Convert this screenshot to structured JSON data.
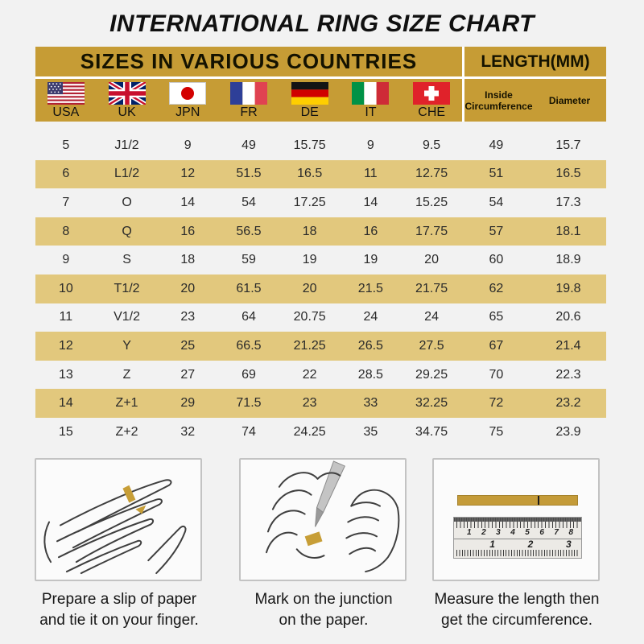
{
  "page": {
    "title": "INTERNATIONAL RING SIZE CHART"
  },
  "table": {
    "header_left": "SIZES IN VARIOUS COUNTRIES",
    "header_right": "LENGTH(MM)",
    "countries": [
      {
        "label": "USA",
        "flag": "usa-flag"
      },
      {
        "label": "UK",
        "flag": "uk-flag"
      },
      {
        "label": "JPN",
        "flag": "japan-flag"
      },
      {
        "label": "FR",
        "flag": "france-flag"
      },
      {
        "label": "DE",
        "flag": "germany-flag"
      },
      {
        "label": "IT",
        "flag": "italy-flag"
      },
      {
        "label": "CHE",
        "flag": "switzerland-flag"
      }
    ],
    "length_headers": [
      "Inside Circumference",
      "Diameter"
    ]
  },
  "chart_data": {
    "type": "table",
    "title": "INTERNATIONAL RING SIZE CHART",
    "group_headers": [
      "SIZES IN VARIOUS COUNTRIES",
      "LENGTH(MM)"
    ],
    "columns": [
      "USA",
      "UK",
      "JPN",
      "FR",
      "DE",
      "IT",
      "CHE",
      "Inside Circumference",
      "Diameter"
    ],
    "col_keys": [
      "usa",
      "uk",
      "jpn",
      "fr",
      "de",
      "it",
      "che",
      "inside-circumference",
      "diameter"
    ],
    "rows": [
      [
        "5",
        "J1/2",
        "9",
        "49",
        "15.75",
        "9",
        "9.5",
        "49",
        "15.7"
      ],
      [
        "6",
        "L1/2",
        "12",
        "51.5",
        "16.5",
        "11",
        "12.75",
        "51",
        "16.5"
      ],
      [
        "7",
        "O",
        "14",
        "54",
        "17.25",
        "14",
        "15.25",
        "54",
        "17.3"
      ],
      [
        "8",
        "Q",
        "16",
        "56.5",
        "18",
        "16",
        "17.75",
        "57",
        "18.1"
      ],
      [
        "9",
        "S",
        "18",
        "59",
        "19",
        "19",
        "20",
        "60",
        "18.9"
      ],
      [
        "10",
        "T1/2",
        "20",
        "61.5",
        "20",
        "21.5",
        "21.75",
        "62",
        "19.8"
      ],
      [
        "11",
        "V1/2",
        "23",
        "64",
        "20.75",
        "24",
        "24",
        "65",
        "20.6"
      ],
      [
        "12",
        "Y",
        "25",
        "66.5",
        "21.25",
        "26.5",
        "27.5",
        "67",
        "21.4"
      ],
      [
        "13",
        "Z",
        "27",
        "69",
        "22",
        "28.5",
        "29.25",
        "70",
        "22.3"
      ],
      [
        "14",
        "Z+1",
        "29",
        "71.5",
        "23",
        "33",
        "32.25",
        "72",
        "23.2"
      ],
      [
        "15",
        "Z+2",
        "32",
        "74",
        "24.25",
        "35",
        "34.75",
        "75",
        "23.9"
      ]
    ]
  },
  "steps": [
    {
      "caption_lines": [
        "Prepare a slip of paper",
        "and tie it on your finger."
      ]
    },
    {
      "caption_lines": [
        "Mark on the junction",
        "on the paper."
      ]
    },
    {
      "caption_lines": [
        "Measure the length then",
        "get the circumference."
      ],
      "ruler_cm": [
        "1",
        "2",
        "3",
        "4",
        "5",
        "6",
        "7",
        "8"
      ],
      "ruler_inch": [
        "1",
        "2",
        "3"
      ]
    }
  ],
  "colors": {
    "header_gold": "#C69C35",
    "row_gold": "#E2C87D",
    "page_background": "#F2F2F2",
    "divider_white": "#FFFFFF",
    "paper_strip_gold": "#C49B39"
  }
}
